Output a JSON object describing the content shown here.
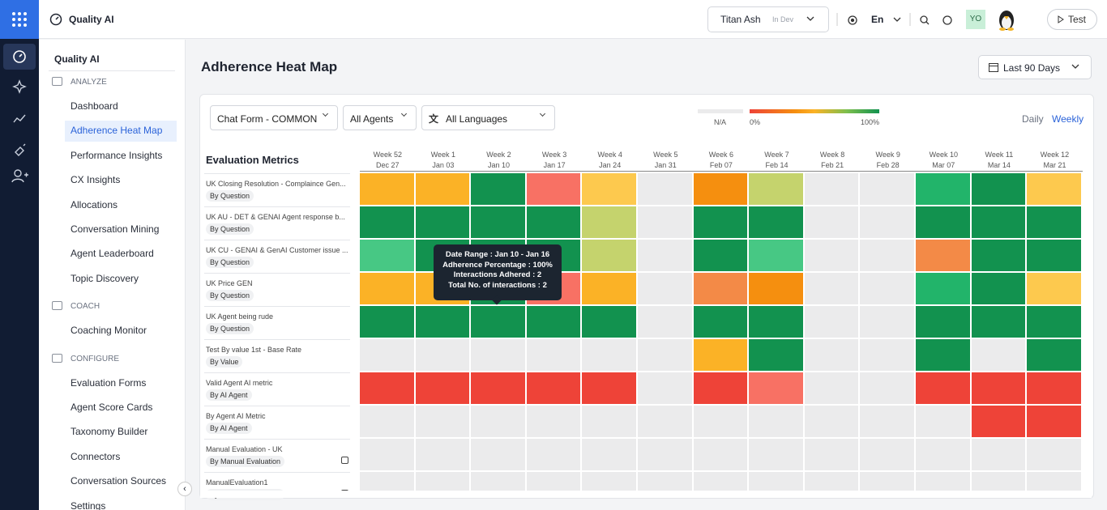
{
  "app": {
    "title": "Quality AI"
  },
  "topbar": {
    "workspace": "Titan Ash",
    "env": "In Dev",
    "language": "En",
    "avatar": "YO",
    "test": "Test"
  },
  "sidebar": {
    "title": "Quality AI",
    "sections": [
      {
        "heading": "ANALYZE",
        "items": [
          "Dashboard",
          "Adherence Heat Map",
          "Performance Insights",
          "CX Insights",
          "Allocations",
          "Conversation Mining",
          "Agent Leaderboard",
          "Topic Discovery"
        ]
      },
      {
        "heading": "COACH",
        "items": [
          "Coaching Monitor"
        ]
      },
      {
        "heading": "CONFIGURE",
        "items": [
          "Evaluation Forms",
          "Agent Score Cards",
          "Taxonomy Builder",
          "Connectors",
          "Conversation Sources",
          "Settings"
        ]
      }
    ],
    "selected": "Adherence Heat Map"
  },
  "page": {
    "title": "Adherence Heat Map",
    "range": "Last 90 Days"
  },
  "filters": [
    "Chat Form - COMMON",
    "All Agents",
    "All Languages"
  ],
  "legend": {
    "na": "N/A",
    "min": "0%",
    "max": "100%"
  },
  "views": [
    "Daily",
    "Weekly"
  ],
  "heatmap": {
    "title": "Evaluation Metrics",
    "columns": [
      {
        "week": "Week 52",
        "date": "Dec 27"
      },
      {
        "week": "Week 1",
        "date": "Jan 03"
      },
      {
        "week": "Week 2",
        "date": "Jan 10"
      },
      {
        "week": "Week 3",
        "date": "Jan 17"
      },
      {
        "week": "Week 4",
        "date": "Jan 24"
      },
      {
        "week": "Week 5",
        "date": "Jan 31"
      },
      {
        "week": "Week 6",
        "date": "Feb 07"
      },
      {
        "week": "Week 7",
        "date": "Feb 14"
      },
      {
        "week": "Week 8",
        "date": "Feb 21"
      },
      {
        "week": "Week 9",
        "date": "Feb 28"
      },
      {
        "week": "Week 10",
        "date": "Mar 07"
      },
      {
        "week": "Week 11",
        "date": "Mar 14"
      },
      {
        "week": "Week 12",
        "date": "Mar 21"
      }
    ],
    "rows": [
      {
        "name": "UK Closing Resolution - Complaince Gen...",
        "tag": "By Question",
        "cells": [
          "#fbb226",
          "#fbb226",
          "#12924f",
          "#f87164",
          "#fdc94e",
          null,
          "#f58f0f",
          "#c5d36d",
          null,
          null,
          "#22b46a",
          "#12924f",
          "#fdc94e"
        ]
      },
      {
        "name": "UK AU - DET & GENAI Agent response b...",
        "tag": "By Question",
        "cells": [
          "#12924f",
          "#12924f",
          "#12924f",
          "#12924f",
          "#c5d36d",
          null,
          "#12924f",
          "#12924f",
          null,
          null,
          "#12924f",
          "#12924f",
          "#12924f"
        ]
      },
      {
        "name": "UK CU - GENAI & GenAI Customer issue ...",
        "tag": "By Question",
        "cells": [
          "#47c884",
          "#12924f",
          "#12924f",
          "#12924f",
          "#c5d36d",
          null,
          "#12924f",
          "#47c884",
          null,
          null,
          "#f38a47",
          "#12924f",
          "#12924f"
        ]
      },
      {
        "name": "UK Price GEN",
        "tag": "By Question",
        "cells": [
          "#fbb226",
          "#fbb226",
          "#12924f",
          "#f87164",
          "#fbb226",
          null,
          "#f38a47",
          "#f58f0f",
          null,
          null,
          "#22b46a",
          "#12924f",
          "#fdc94e"
        ]
      },
      {
        "name": "UK Agent being rude",
        "tag": "By Question",
        "cells": [
          "#12924f",
          "#12924f",
          "#12924f",
          "#12924f",
          "#12924f",
          null,
          "#12924f",
          "#12924f",
          null,
          null,
          "#12924f",
          "#12924f",
          "#12924f"
        ]
      },
      {
        "name": "Test By value 1st - Base Rate",
        "tag": "By Value",
        "cells": [
          null,
          null,
          null,
          null,
          null,
          null,
          "#fbb226",
          "#12924f",
          null,
          null,
          "#12924f",
          null,
          "#12924f"
        ]
      },
      {
        "name": "Valid Agent AI metric",
        "tag": "By AI Agent",
        "cells": [
          "#ee4338",
          "#ee4338",
          "#ee4338",
          "#ee4338",
          "#ee4338",
          null,
          "#ee4338",
          "#f87164",
          null,
          null,
          "#ee4338",
          "#ee4338",
          "#ee4338"
        ]
      },
      {
        "name": "By Agent AI Metric",
        "tag": "By AI Agent",
        "cells": [
          null,
          null,
          null,
          null,
          null,
          null,
          null,
          null,
          null,
          null,
          null,
          "#ee4338",
          "#ee4338"
        ]
      },
      {
        "name": "Manual Evaluation - UK",
        "tag": "By Manual Evaluation",
        "cells": [
          null,
          null,
          null,
          null,
          null,
          null,
          null,
          null,
          null,
          null,
          null,
          null,
          null
        ]
      },
      {
        "name": "ManualEvaluation1",
        "tag": "By Manual Evaluation",
        "cells": [
          null,
          null,
          null,
          null,
          null,
          null,
          null,
          null,
          null,
          null,
          null,
          null,
          null
        ]
      }
    ]
  },
  "tooltip": {
    "lines": [
      "Date Range : Jan 10 - Jan 16",
      "Adherence Percentage : 100%",
      "Interactions Adhered : 2",
      "Total No. of interactions : 2"
    ]
  }
}
